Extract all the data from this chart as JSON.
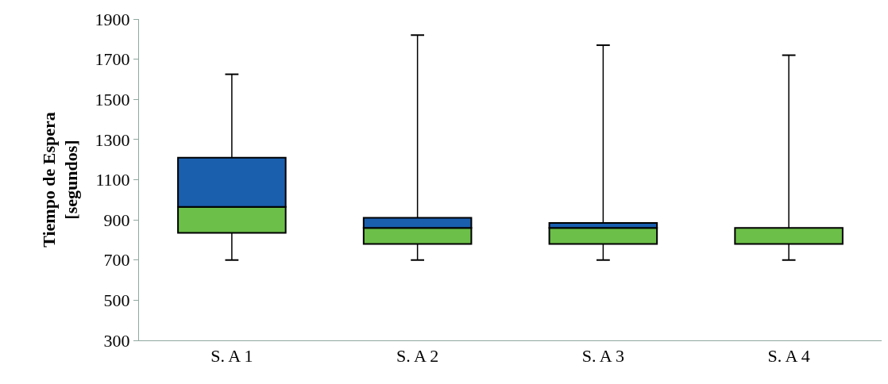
{
  "chart_data": {
    "type": "box",
    "ylabel": "Tiempo de Espera\n[segundos]",
    "categories": [
      "S. A 1",
      "S. A 2",
      "S. A 3",
      "S. A 4"
    ],
    "boxes": [
      {
        "low": 700,
        "q1": 835,
        "median": 965,
        "q3": 1210,
        "high": 1625
      },
      {
        "low": 700,
        "q1": 780,
        "median": 860,
        "q3": 910,
        "high": 1820
      },
      {
        "low": 700,
        "q1": 780,
        "median": 860,
        "q3": 885,
        "high": 1770
      },
      {
        "low": 700,
        "q1": 780,
        "median": 860,
        "q3": 860,
        "high": 1720
      }
    ],
    "colors": [
      "#6cbf48",
      "#6cbf48",
      "#6cbf48",
      "#6cbf48"
    ],
    "color": "#1a5fae",
    "ylim": [
      300,
      1900
    ],
    "yticks": [
      300,
      500,
      700,
      900,
      1100,
      1300,
      1500,
      1700,
      1900
    ]
  }
}
